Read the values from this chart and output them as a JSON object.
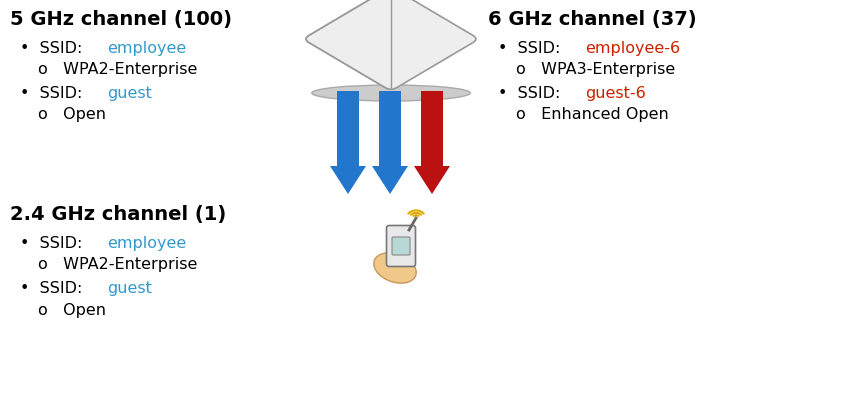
{
  "background_color": "#ffffff",
  "left_top_title": "5 GHz channel (100)",
  "left_top_bullets": [
    {
      "ssid": "employee",
      "ssid_color": "#3399cc",
      "sub": "WPA2-Enterprise"
    },
    {
      "ssid": "guest",
      "ssid_color": "#3399cc",
      "sub": "Open"
    }
  ],
  "left_bottom_title": "2.4 GHz channel (1)",
  "left_bottom_bullets": [
    {
      "ssid": "employee",
      "ssid_color": "#3399cc",
      "sub": "WPA2-Enterprise"
    },
    {
      "ssid": "guest",
      "ssid_color": "#3399cc",
      "sub": "Open"
    }
  ],
  "right_title": "6 GHz channel (37)",
  "right_bullets": [
    {
      "ssid": "employee-6",
      "ssid_color": "#cc2200",
      "sub": "WPA3-Enterprise"
    },
    {
      "ssid": "guest-6",
      "ssid_color": "#cc2200",
      "sub": "Enhanced Open"
    }
  ],
  "arrow_blue": "#2277cc",
  "arrow_red": "#bb1111",
  "title_fs": 14,
  "body_fs": 11.5,
  "figw": 8.67,
  "figh": 4.1,
  "dpi": 100
}
